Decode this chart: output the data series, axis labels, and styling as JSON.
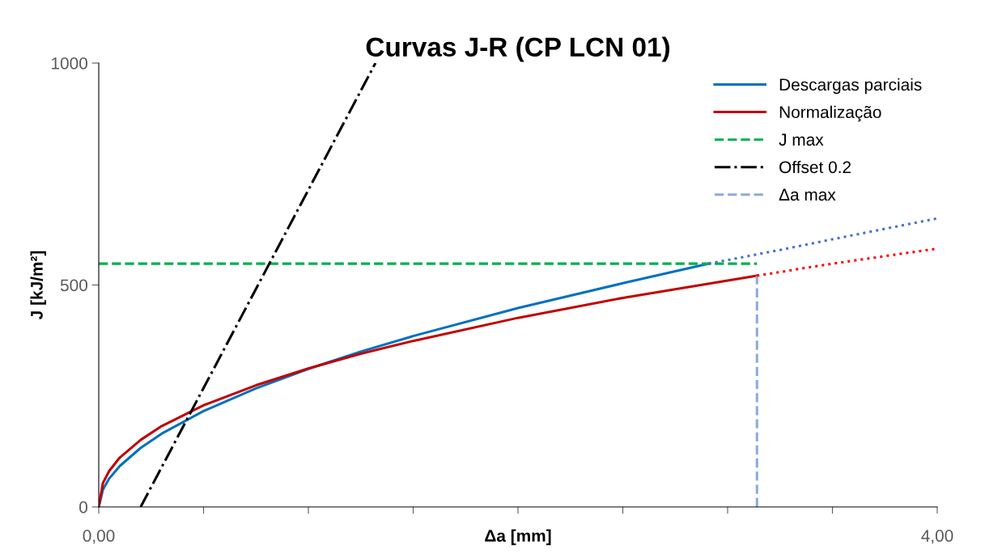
{
  "chart_data": {
    "type": "line",
    "title": "Curvas J-R (CP LCN 01)",
    "xlabel": "Δa [mm]",
    "ylabel": "J [kJ/m²]",
    "xlim": [
      0,
      4
    ],
    "ylim": [
      0,
      1000
    ],
    "xticks": [
      {
        "value": 0,
        "label": "0,00"
      },
      {
        "value": 0.5,
        "label": null
      },
      {
        "value": 1,
        "label": null
      },
      {
        "value": 1.5,
        "label": null
      },
      {
        "value": 2,
        "label": null
      },
      {
        "value": 2.5,
        "label": null
      },
      {
        "value": 3,
        "label": null
      },
      {
        "value": 3.5,
        "label": null
      },
      {
        "value": 4,
        "label": "4,00"
      }
    ],
    "yticks": [
      0,
      500,
      1000
    ],
    "grid": false,
    "legend": "top right",
    "series": [
      {
        "name": "Descargas parciais",
        "color": "#0070c0",
        "line_style": "solid",
        "x": [
          0,
          0.02,
          0.05,
          0.1,
          0.2,
          0.3,
          0.5,
          0.75,
          1,
          1.25,
          1.5,
          2,
          2.5,
          2.91
        ],
        "values": [
          0,
          39,
          64,
          92,
          133,
          165,
          216,
          267,
          311,
          350,
          385,
          448,
          504,
          548
        ]
      },
      {
        "name": "Normalização",
        "color": "#c00000",
        "line_style": "solid",
        "x": [
          0,
          0.02,
          0.05,
          0.1,
          0.2,
          0.3,
          0.5,
          0.75,
          1,
          1.25,
          1.5,
          2,
          2.5,
          3.14
        ],
        "values": [
          0,
          54,
          81,
          111,
          151,
          182,
          229,
          274,
          312,
          345,
          374,
          426,
          471,
          521
        ]
      },
      {
        "name": "J max",
        "color": "#00b050",
        "line_style": "dashed",
        "x": [
          0,
          3.14
        ],
        "values": [
          548,
          548
        ]
      },
      {
        "name": "Offset 0.2",
        "color": "#000000",
        "line_style": "dashdot",
        "x": [
          0.2,
          1.32
        ],
        "values": [
          0,
          1000
        ]
      },
      {
        "name": "Δa max",
        "color": "#8eaadb",
        "line_style": "dashed",
        "x": [
          3.14,
          3.14
        ],
        "values": [
          0,
          521
        ]
      },
      {
        "color": "#4472c4",
        "line_style": "dotted",
        "x": [
          2.91,
          3.25,
          3.5,
          4
        ],
        "values": [
          548,
          579,
          603,
          650
        ]
      },
      {
        "color": "#ff0000",
        "line_style": "dotted",
        "x": [
          3.14,
          3.5,
          4
        ],
        "values": [
          521,
          548,
          582
        ]
      }
    ]
  }
}
